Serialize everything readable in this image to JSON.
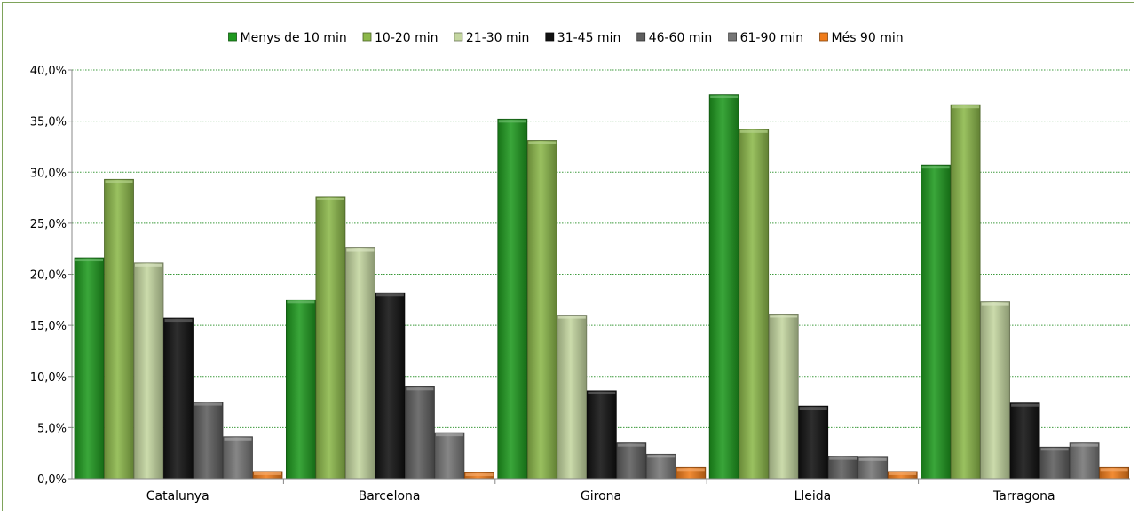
{
  "chart_data": {
    "type": "bar",
    "title": "",
    "xlabel": "",
    "ylabel": "",
    "categories": [
      "Catalunya",
      "Barcelona",
      "Girona",
      "Lleida",
      "Tarragona"
    ],
    "ylim": [
      0,
      40
    ],
    "yticks": [
      "0,0%",
      "5,0%",
      "10,0%",
      "15,0%",
      "20,0%",
      "25,0%",
      "30,0%",
      "35,0%",
      "40,0%"
    ],
    "grid": true,
    "legend_position": "top",
    "series": [
      {
        "name": "Menys de 10 min",
        "color": "#1f9a1f",
        "values": [
          21.6,
          17.5,
          35.2,
          37.6,
          30.7
        ]
      },
      {
        "name": "10-20 min",
        "color": "#8cb84a",
        "values": [
          29.3,
          27.6,
          33.1,
          34.2,
          36.6
        ]
      },
      {
        "name": "21-30 min",
        "color": "#c4d6a0",
        "values": [
          21.1,
          22.6,
          16.0,
          16.1,
          17.3
        ]
      },
      {
        "name": "31-45 min",
        "color": "#111111",
        "values": [
          15.7,
          18.2,
          8.6,
          7.1,
          7.4
        ]
      },
      {
        "name": "46-60 min",
        "color": "#5e5e5e",
        "values": [
          7.5,
          9.0,
          3.5,
          2.2,
          3.1
        ]
      },
      {
        "name": "61-90 min",
        "color": "#767676",
        "values": [
          4.1,
          4.5,
          2.4,
          2.1,
          3.5
        ]
      },
      {
        "name": "Més 90 min",
        "color": "#f07c1a",
        "values": [
          0.7,
          0.6,
          1.1,
          0.7,
          1.1
        ]
      }
    ]
  }
}
